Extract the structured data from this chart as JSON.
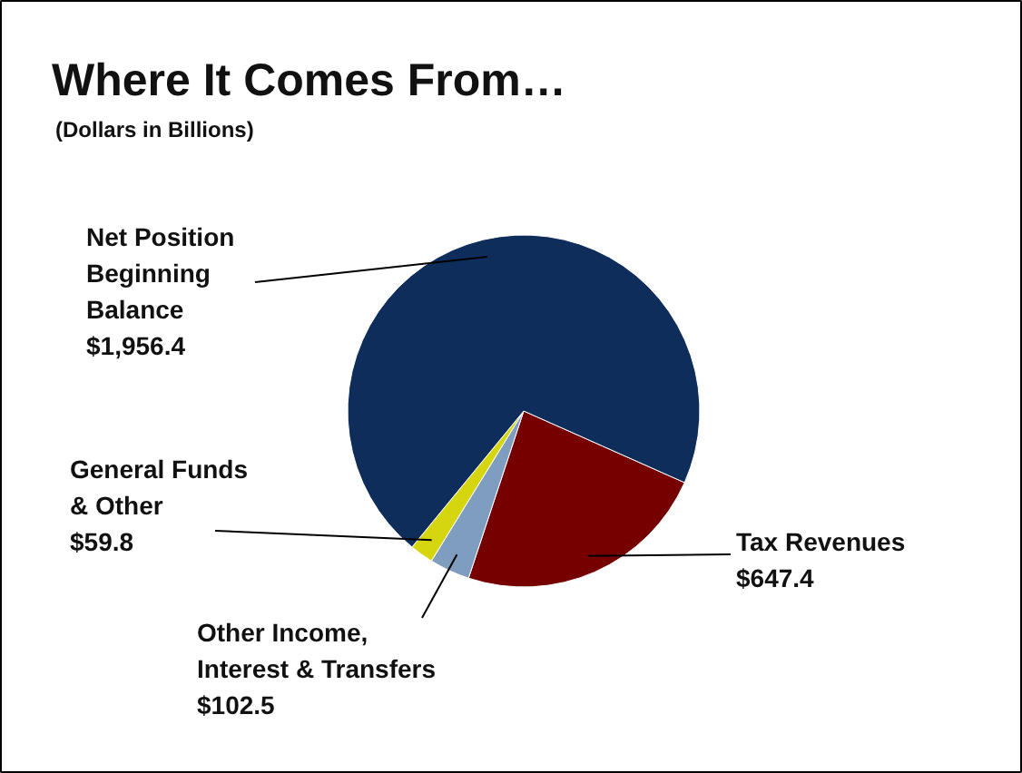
{
  "chart_data": {
    "type": "pie",
    "title": "Where It Comes From…",
    "subtitle": "(Dollars in Billions)",
    "categories": [
      "Tax Revenues",
      "Other Income, Interest & Transfers",
      "General Funds & Other",
      "Net Position Beginning Balance"
    ],
    "values": [
      647.4,
      102.5,
      59.8,
      1956.4
    ],
    "value_labels": [
      "$647.4",
      "$102.5",
      "$59.8",
      "$1,956.4"
    ],
    "colors": [
      "#760000",
      "#7f9dbf",
      "#d6d610",
      "#0f2d5a"
    ]
  }
}
